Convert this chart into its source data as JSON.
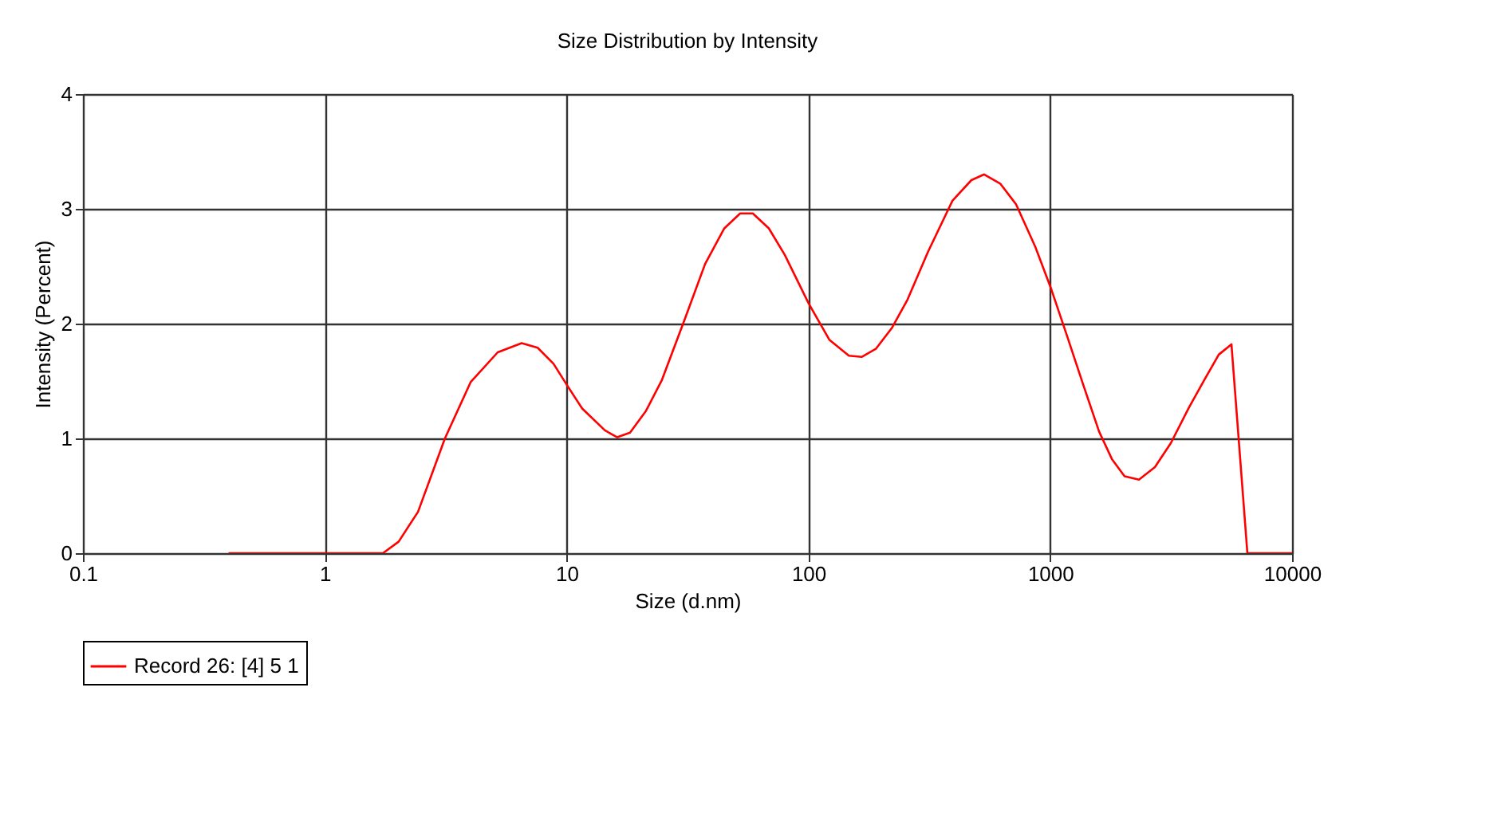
{
  "chart_data": {
    "type": "line",
    "title": "Size Distribution by Intensity",
    "xlabel": "Size (d.nm)",
    "ylabel": "Intensity (Percent)",
    "log": "x",
    "xlim": [
      0.1,
      10000
    ],
    "xticks": [
      0.1,
      1,
      10,
      100,
      1000,
      10000
    ],
    "ylim": [
      0,
      4
    ],
    "yticks": [
      0,
      1,
      2,
      3,
      4
    ],
    "grid": true,
    "legend": "bottom",
    "marker": "none",
    "line_style": "solid",
    "series": [
      {
        "name": "Record 26: [4] 5 1",
        "color": "#ff0000",
        "x": [
          0.4,
          1.74,
          2.02,
          2.43,
          3.14,
          4.01,
          5.19,
          6.52,
          7.59,
          8.83,
          10.0,
          11.6,
          14.4,
          16.2,
          18.3,
          21.3,
          24.8,
          30.7,
          37.4,
          44.9,
          52.2,
          58.9,
          68.6,
          79.8,
          100,
          122,
          147,
          166,
          190,
          221,
          257,
          313,
          394,
          472,
          533,
          621,
          722,
          867,
          1010,
          1175,
          1368,
          1592,
          1799,
          2029,
          2328,
          2710,
          3155,
          3727,
          4337,
          4977,
          5615,
          6535,
          10000
        ],
        "values": [
          0,
          0,
          0.1,
          0.36,
          1.0,
          1.49,
          1.75,
          1.83,
          1.79,
          1.65,
          1.47,
          1.26,
          1.07,
          1.01,
          1.05,
          1.24,
          1.51,
          2.03,
          2.52,
          2.83,
          2.96,
          2.96,
          2.83,
          2.6,
          2.18,
          1.86,
          1.72,
          1.71,
          1.78,
          1.96,
          2.21,
          2.63,
          3.07,
          3.25,
          3.3,
          3.22,
          3.04,
          2.67,
          2.3,
          1.89,
          1.47,
          1.06,
          0.82,
          0.67,
          0.64,
          0.75,
          0.96,
          1.26,
          1.51,
          1.73,
          1.82,
          0,
          0
        ]
      }
    ]
  }
}
